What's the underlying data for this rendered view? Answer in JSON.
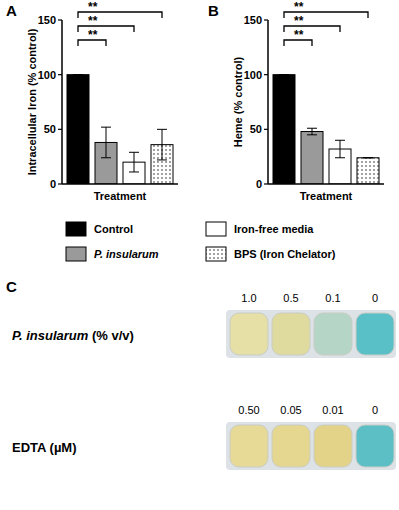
{
  "chart_data": [
    {
      "type": "bar",
      "title": "A",
      "x_label": "Treatment",
      "y_label": "Intracellular Iron (% control)",
      "categories": [
        "Control",
        "P. insularum",
        "Iron-free media",
        "BPS (Iron Chelator)"
      ],
      "values": [
        100,
        38,
        20,
        36
      ],
      "errors": [
        0,
        14,
        9,
        14
      ],
      "colors": [
        "#000000",
        "#9a9a9a",
        "#ffffff",
        "#ffffff"
      ],
      "ylim": [
        0,
        150
      ],
      "yticks": [
        0,
        50,
        100,
        150
      ],
      "tick_labels": "y",
      "legend": "bottom",
      "annotations": [
        {
          "text": "**",
          "from": 0,
          "to": 1
        },
        {
          "text": "**",
          "from": 0,
          "to": 2
        },
        {
          "text": "**",
          "from": 0,
          "to": 3
        }
      ]
    },
    {
      "type": "bar",
      "title": "B",
      "x_label": "Treatment",
      "y_label": "Heme (% control)",
      "categories": [
        "Control",
        "P. insularum",
        "Iron-free media",
        "BPS (Iron Chelator)"
      ],
      "values": [
        100,
        48,
        32,
        24
      ],
      "errors": [
        0,
        3,
        8,
        0
      ],
      "colors": [
        "#000000",
        "#9a9a9a",
        "#ffffff",
        "#ffffff"
      ],
      "ylim": [
        0,
        150
      ],
      "yticks": [
        0,
        50,
        100,
        150
      ],
      "tick_labels": "y",
      "annotations": [
        {
          "text": "**",
          "from": 0,
          "to": 1
        },
        {
          "text": "**",
          "from": 0,
          "to": 2
        },
        {
          "text": "**",
          "from": 0,
          "to": 3
        }
      ]
    }
  ],
  "panel_c": {
    "label": "C",
    "rows": [
      {
        "name": "P. insularum (% v/v)",
        "concentrations": [
          "1.0",
          "0.5",
          "0.1",
          "0"
        ],
        "colors": [
          "#e6dfa6",
          "#dfdb9f",
          "#b5d5c6",
          "#58c0c6"
        ]
      },
      {
        "name": "EDTA (µM)",
        "concentrations": [
          "0.50",
          "0.05",
          "0.01",
          "0"
        ],
        "colors": [
          "#e7da96",
          "#e5d78f",
          "#e3d389",
          "#5bbfc5"
        ]
      }
    ]
  }
}
